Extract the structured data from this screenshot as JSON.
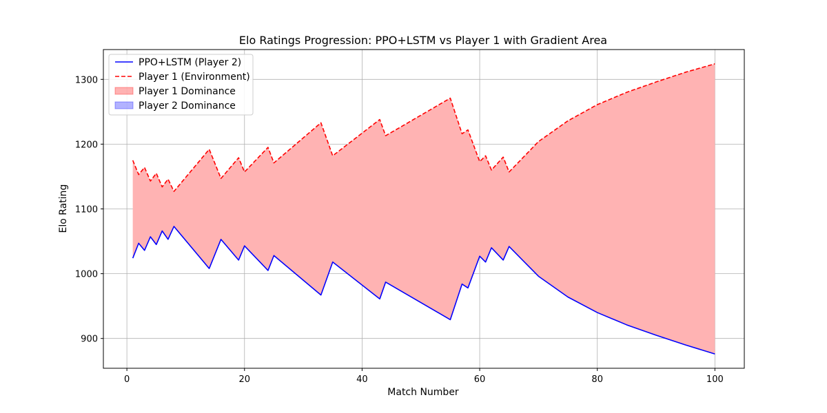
{
  "chart_data": {
    "type": "line",
    "title": "Elo Ratings Progression: PPO+LSTM vs Player 1 with Gradient Area",
    "xlabel": "Match Number",
    "ylabel": "Elo Rating",
    "xlim": [
      -4,
      105
    ],
    "ylim": [
      854,
      1346
    ],
    "xticks": [
      0,
      20,
      40,
      60,
      80,
      100
    ],
    "yticks": [
      900,
      1000,
      1100,
      1200,
      1300
    ],
    "grid": true,
    "legend_position": "upper-left",
    "legend": [
      {
        "label": "PPO+LSTM (Player 2)",
        "kind": "line",
        "color": "#0000ff",
        "dash": "solid"
      },
      {
        "label": "Player 1 (Environment)",
        "kind": "line",
        "color": "#ff0000",
        "dash": "dashed"
      },
      {
        "label": "Player 1 Dominance",
        "kind": "area",
        "color": "#ff0000"
      },
      {
        "label": "Player 2 Dominance",
        "kind": "area",
        "color": "#0000ff"
      }
    ],
    "fill_color": "#ffb3b3",
    "series": [
      {
        "name": "PPO+LSTM (Player 2)",
        "color": "#0000ff",
        "dash": "solid",
        "points": [
          [
            1,
            1024
          ],
          [
            2,
            1047
          ],
          [
            3,
            1036
          ],
          [
            4,
            1057
          ],
          [
            5,
            1045
          ],
          [
            6,
            1066
          ],
          [
            7,
            1053
          ],
          [
            8,
            1073
          ],
          [
            14,
            1008
          ],
          [
            16,
            1053
          ],
          [
            19,
            1021
          ],
          [
            20,
            1043
          ],
          [
            24,
            1005
          ],
          [
            25,
            1028
          ],
          [
            33,
            967
          ],
          [
            35,
            1018
          ],
          [
            43,
            961
          ],
          [
            44,
            987
          ],
          [
            55,
            929
          ],
          [
            57,
            984
          ],
          [
            58,
            978
          ],
          [
            60,
            1027
          ],
          [
            61,
            1018
          ],
          [
            62,
            1040
          ],
          [
            64,
            1021
          ],
          [
            65,
            1042
          ],
          [
            70,
            996
          ],
          [
            75,
            964
          ],
          [
            80,
            940
          ],
          [
            85,
            921
          ],
          [
            90,
            905
          ],
          [
            95,
            890
          ],
          [
            100,
            876
          ]
        ]
      },
      {
        "name": "Player 1 (Environment)",
        "color": "#ff0000",
        "dash": "dashed",
        "points": [
          [
            1,
            1175
          ],
          [
            2,
            1153
          ],
          [
            3,
            1164
          ],
          [
            4,
            1143
          ],
          [
            5,
            1155
          ],
          [
            6,
            1134
          ],
          [
            7,
            1146
          ],
          [
            8,
            1127
          ],
          [
            14,
            1192
          ],
          [
            16,
            1147
          ],
          [
            19,
            1179
          ],
          [
            20,
            1157
          ],
          [
            24,
            1195
          ],
          [
            25,
            1171
          ],
          [
            33,
            1233
          ],
          [
            35,
            1182
          ],
          [
            43,
            1238
          ],
          [
            44,
            1213
          ],
          [
            55,
            1271
          ],
          [
            57,
            1216
          ],
          [
            58,
            1222
          ],
          [
            60,
            1173
          ],
          [
            61,
            1182
          ],
          [
            62,
            1160
          ],
          [
            64,
            1180
          ],
          [
            65,
            1157
          ],
          [
            70,
            1204
          ],
          [
            75,
            1236
          ],
          [
            80,
            1261
          ],
          [
            85,
            1280
          ],
          [
            90,
            1296
          ],
          [
            95,
            1311
          ],
          [
            100,
            1324
          ]
        ]
      }
    ]
  }
}
